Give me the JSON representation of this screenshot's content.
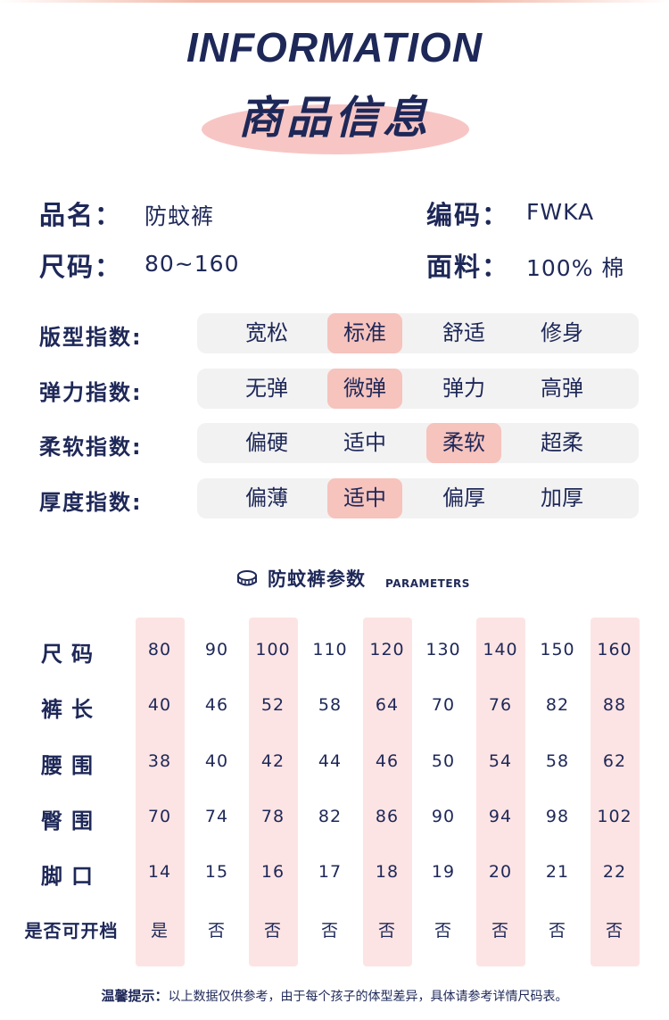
{
  "header": {
    "title_en": "INFORMATION",
    "title_cn": "商品信息"
  },
  "info": {
    "name_label": "品名：",
    "name_value": "防蚊裤",
    "code_label": "编码：",
    "code_value": "FWKA",
    "size_label": "尺码：",
    "size_value": "80~160",
    "fabric_label": "面料：",
    "fabric_value": "100% 棉"
  },
  "indices": [
    {
      "label": "版型指数:",
      "options": [
        "宽松",
        "标准",
        "舒适",
        "修身"
      ],
      "selected": 1
    },
    {
      "label": "弹力指数:",
      "options": [
        "无弹",
        "微弹",
        "弹力",
        "高弹"
      ],
      "selected": 1
    },
    {
      "label": "柔软指数:",
      "options": [
        "偏硬",
        "适中",
        "柔软",
        "超柔"
      ],
      "selected": 2
    },
    {
      "label": "厚度指数:",
      "options": [
        "偏薄",
        "适中",
        "偏厚",
        "加厚"
      ],
      "selected": 1
    }
  ],
  "params": {
    "title_cn": "防蚊裤参数",
    "title_en": "PARAMETERS",
    "icon": "tape-measure-icon",
    "rows": [
      {
        "label": "尺码",
        "values": [
          "80",
          "90",
          "100",
          "110",
          "120",
          "130",
          "140",
          "150",
          "160"
        ]
      },
      {
        "label": "裤长",
        "values": [
          "40",
          "46",
          "52",
          "58",
          "64",
          "70",
          "76",
          "82",
          "88"
        ]
      },
      {
        "label": "腰围",
        "values": [
          "38",
          "40",
          "42",
          "44",
          "46",
          "50",
          "54",
          "58",
          "62"
        ]
      },
      {
        "label": "臀围",
        "values": [
          "70",
          "74",
          "78",
          "82",
          "86",
          "90",
          "94",
          "98",
          "102"
        ]
      },
      {
        "label": "脚口",
        "values": [
          "14",
          "15",
          "16",
          "17",
          "18",
          "19",
          "20",
          "21",
          "22"
        ]
      },
      {
        "label": "是否可开档",
        "values": [
          "是",
          "否",
          "否",
          "否",
          "否",
          "否",
          "否",
          "否",
          "否"
        ]
      }
    ]
  },
  "tip": {
    "label": "温馨提示：",
    "text": "以上数据仅供参考，由于每个孩子的体型差异，具体请参考详情尺码表。"
  },
  "colors": {
    "navy": "#1e2858",
    "pink_highlight": "#f6c3bd",
    "pink_band": "#fde4e4",
    "track_gray": "#f2f2f2"
  }
}
